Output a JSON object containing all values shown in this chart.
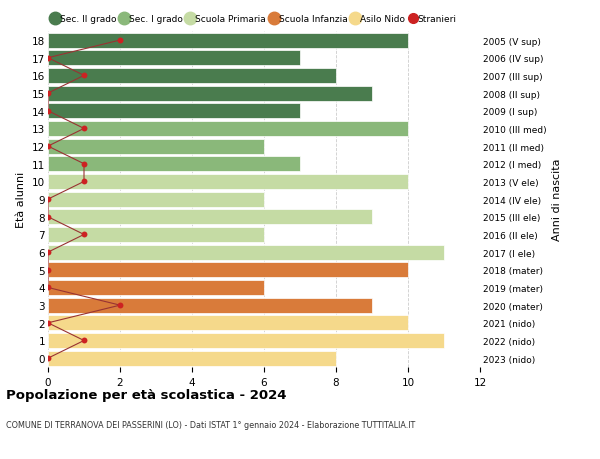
{
  "ages": [
    18,
    17,
    16,
    15,
    14,
    13,
    12,
    11,
    10,
    9,
    8,
    7,
    6,
    5,
    4,
    3,
    2,
    1,
    0
  ],
  "right_labels": [
    "2005 (V sup)",
    "2006 (IV sup)",
    "2007 (III sup)",
    "2008 (II sup)",
    "2009 (I sup)",
    "2010 (III med)",
    "2011 (II med)",
    "2012 (I med)",
    "2013 (V ele)",
    "2014 (IV ele)",
    "2015 (III ele)",
    "2016 (II ele)",
    "2017 (I ele)",
    "2018 (mater)",
    "2019 (mater)",
    "2020 (mater)",
    "2021 (nido)",
    "2022 (nido)",
    "2023 (nido)"
  ],
  "bar_values": [
    10,
    7,
    8,
    9,
    7,
    10,
    6,
    7,
    10,
    6,
    9,
    6,
    11,
    10,
    6,
    9,
    10,
    11,
    8
  ],
  "bar_colors": [
    "#4a7c4e",
    "#4a7c4e",
    "#4a7c4e",
    "#4a7c4e",
    "#4a7c4e",
    "#8ab87a",
    "#8ab87a",
    "#8ab87a",
    "#c5dba4",
    "#c5dba4",
    "#c5dba4",
    "#c5dba4",
    "#c5dba4",
    "#d97b3a",
    "#d97b3a",
    "#d97b3a",
    "#f5d98b",
    "#f5d98b",
    "#f5d98b"
  ],
  "stranieri_values": [
    2,
    0,
    1,
    0,
    0,
    1,
    0,
    1,
    1,
    0,
    0,
    1,
    0,
    0,
    0,
    2,
    0,
    1,
    0
  ],
  "ylabel_left": "Età alunni",
  "ylabel_right": "Anni di nascita",
  "xlim": [
    0,
    12
  ],
  "xticks": [
    0,
    2,
    4,
    6,
    8,
    10,
    12
  ],
  "title": "Popolazione per età scolastica - 2024",
  "subtitle": "COMUNE DI TERRANOVA DEI PASSERINI (LO) - Dati ISTAT 1° gennaio 2024 - Elaborazione TUTTITALIA.IT",
  "legend_labels": [
    "Sec. II grado",
    "Sec. I grado",
    "Scuola Primaria",
    "Scuola Infanzia",
    "Asilo Nido",
    "Stranieri"
  ],
  "legend_colors": [
    "#4a7c4e",
    "#8ab87a",
    "#c5dba4",
    "#d97b3a",
    "#f5d98b",
    "#cc2222"
  ],
  "bar_height": 0.85,
  "bg_color": "#ffffff",
  "grid_color": "#cccccc",
  "stranieri_line_color": "#993333",
  "stranieri_dot_color": "#cc2222"
}
